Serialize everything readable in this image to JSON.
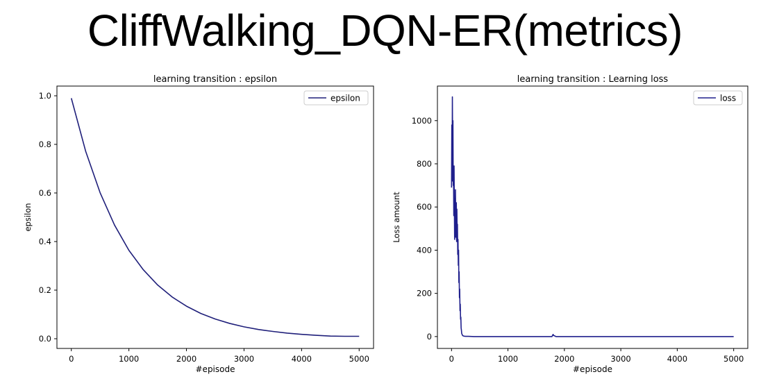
{
  "page": {
    "title": "CliffWalking_DQN-ER(metrics)"
  },
  "chart_data": [
    {
      "type": "line",
      "title": "learning transition : epsilon",
      "xlabel": "#episode",
      "ylabel": "epsilon",
      "xlim": [
        -250,
        5250
      ],
      "ylim": [
        -0.04,
        1.04
      ],
      "xticks": [
        0,
        1000,
        2000,
        3000,
        4000,
        5000
      ],
      "yticks": [
        0.0,
        0.2,
        0.4,
        0.6,
        0.8,
        1.0
      ],
      "ytick_labels": [
        "0.0",
        "0.2",
        "0.4",
        "0.6",
        "0.8",
        "1.0"
      ],
      "legend_position": "top-right",
      "grid": false,
      "series": [
        {
          "name": "epsilon",
          "color": "#1f1f7a",
          "x": [
            0,
            250,
            500,
            750,
            1000,
            1250,
            1500,
            1750,
            2000,
            2250,
            2500,
            2750,
            3000,
            3250,
            3500,
            3750,
            4000,
            4250,
            4500,
            4750,
            5000
          ],
          "y": [
            0.99,
            0.771,
            0.601,
            0.468,
            0.364,
            0.284,
            0.221,
            0.172,
            0.134,
            0.104,
            0.081,
            0.063,
            0.049,
            0.038,
            0.03,
            0.023,
            0.018,
            0.014,
            0.011,
            0.01,
            0.01
          ]
        }
      ]
    },
    {
      "type": "line",
      "title": "learning transition : Learning loss",
      "xlabel": "#episode",
      "ylabel": "Loss amount",
      "xlim": [
        -250,
        5250
      ],
      "ylim": [
        -55,
        1160
      ],
      "xticks": [
        0,
        1000,
        2000,
        3000,
        4000,
        5000
      ],
      "yticks": [
        0,
        200,
        400,
        600,
        800,
        1000
      ],
      "ytick_labels": [
        "0",
        "200",
        "400",
        "600",
        "800",
        "1000"
      ],
      "legend_position": "top-right",
      "grid": false,
      "series": [
        {
          "name": "loss",
          "color": "#1f1f8c",
          "x": [
            0,
            5,
            10,
            15,
            20,
            25,
            30,
            35,
            40,
            45,
            50,
            55,
            60,
            65,
            70,
            75,
            80,
            85,
            90,
            95,
            100,
            105,
            110,
            115,
            120,
            125,
            130,
            135,
            140,
            145,
            150,
            155,
            160,
            165,
            170,
            175,
            180,
            190,
            200,
            220,
            250,
            300,
            400,
            600,
            800,
            1000,
            1200,
            1500,
            1780,
            1800,
            1810,
            1830,
            1850,
            2000,
            2500,
            3000,
            3500,
            4000,
            4500,
            5000
          ],
          "y": [
            690,
            980,
            720,
            1110,
            850,
            1000,
            700,
            780,
            560,
            790,
            600,
            450,
            640,
            500,
            680,
            460,
            560,
            620,
            440,
            590,
            470,
            520,
            380,
            450,
            330,
            400,
            250,
            300,
            180,
            220,
            120,
            150,
            80,
            90,
            40,
            30,
            15,
            8,
            4,
            2,
            1,
            1,
            0,
            0,
            0,
            0,
            0,
            0,
            0,
            10,
            5,
            3,
            0,
            0,
            0,
            0,
            0,
            0,
            0,
            0
          ]
        }
      ]
    }
  ]
}
